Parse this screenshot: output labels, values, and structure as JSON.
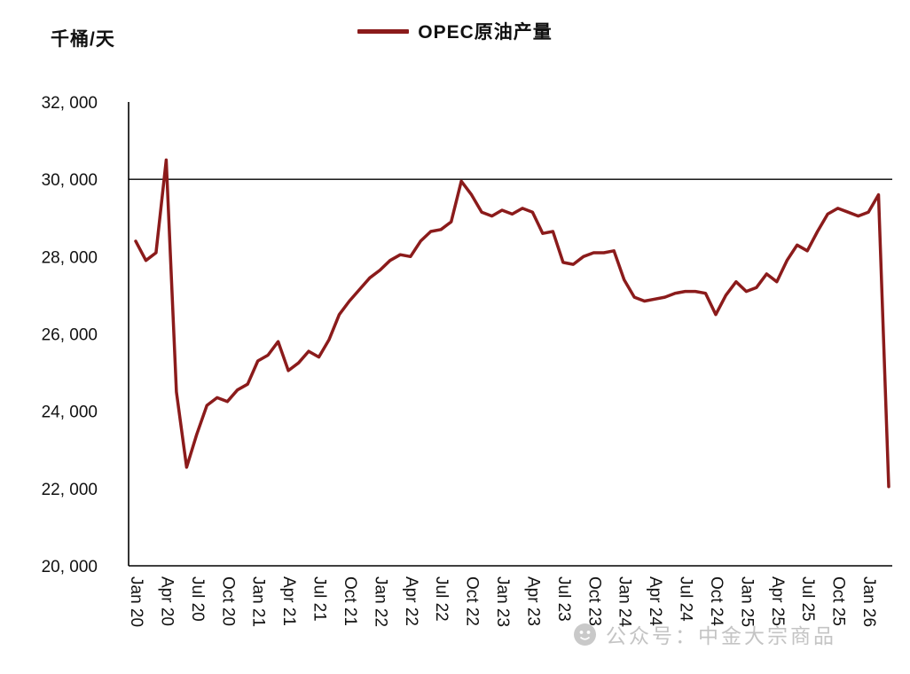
{
  "header": {
    "unit_label": "千桶/天",
    "legend_label": "OPEC原油产量",
    "legend_color": "#8B1B1B"
  },
  "watermark": {
    "text": "公众号：中金大宗商品",
    "icon": "wechat-official-account-logo"
  },
  "chart_data": {
    "type": "line",
    "title": "OPEC原油产量",
    "ylabel": "千桶/天",
    "ylim": [
      20000,
      32000
    ],
    "ytick_interval": 2000,
    "ytick_labels": [
      "20, 000",
      "22, 000",
      "24, 000",
      "26, 000",
      "28, 000",
      "30, 000",
      "32, 000"
    ],
    "xtick_every": 3,
    "grid": false,
    "legend_position": "top-center",
    "reference_line": {
      "value": 30000,
      "color": "#000000"
    },
    "x": [
      "Jan 20",
      "Feb 20",
      "Mar 20",
      "Apr 20",
      "May 20",
      "Jun 20",
      "Jul 20",
      "Aug 20",
      "Sep 20",
      "Oct 20",
      "Nov 20",
      "Dec 20",
      "Jan 21",
      "Feb 21",
      "Mar 21",
      "Apr 21",
      "May 21",
      "Jun 21",
      "Jul 21",
      "Aug 21",
      "Sep 21",
      "Oct 21",
      "Nov 21",
      "Dec 21",
      "Jan 22",
      "Feb 22",
      "Mar 22",
      "Apr 22",
      "May 22",
      "Jun 22",
      "Jul 22",
      "Aug 22",
      "Sep 22",
      "Oct 22",
      "Nov 22",
      "Dec 22",
      "Jan 23",
      "Feb 23",
      "Mar 23",
      "Apr 23",
      "May 23",
      "Jun 23",
      "Jul 23",
      "Aug 23",
      "Sep 23",
      "Oct 23",
      "Nov 23",
      "Dec 23",
      "Jan 24",
      "Feb 24",
      "Mar 24",
      "Apr 24",
      "May 24",
      "Jun 24",
      "Jul 24",
      "Aug 24",
      "Sep 24",
      "Oct 24",
      "Nov 24",
      "Dec 24",
      "Jan 25",
      "Feb 25",
      "Mar 25",
      "Apr 25",
      "May 25",
      "Jun 25",
      "Jul 25",
      "Aug 25",
      "Sep 25",
      "Oct 25",
      "Nov 25",
      "Dec 25",
      "Jan 26",
      "Feb 26",
      "Mar 26"
    ],
    "series": [
      {
        "name": "OPEC原油产量",
        "color": "#8B1B1B",
        "values": [
          28400,
          27900,
          28100,
          30500,
          24500,
          22550,
          23400,
          24150,
          24350,
          24250,
          24550,
          24700,
          25300,
          25450,
          25800,
          25050,
          25250,
          25550,
          25400,
          25850,
          26500,
          26850,
          27150,
          27450,
          27650,
          27900,
          28050,
          28000,
          28400,
          28650,
          28700,
          28900,
          29950,
          29600,
          29150,
          29050,
          29200,
          29100,
          29250,
          29150,
          28600,
          28650,
          27850,
          27800,
          28000,
          28100,
          28100,
          28150,
          27400,
          26950,
          26850,
          26900,
          26950,
          27050,
          27100,
          27100,
          27050,
          26500,
          27000,
          27350,
          27100,
          27200,
          27550,
          27350,
          27900,
          28300,
          28150,
          28650,
          29100,
          29250,
          29150,
          29050,
          29150,
          29600,
          22050
        ]
      }
    ]
  }
}
